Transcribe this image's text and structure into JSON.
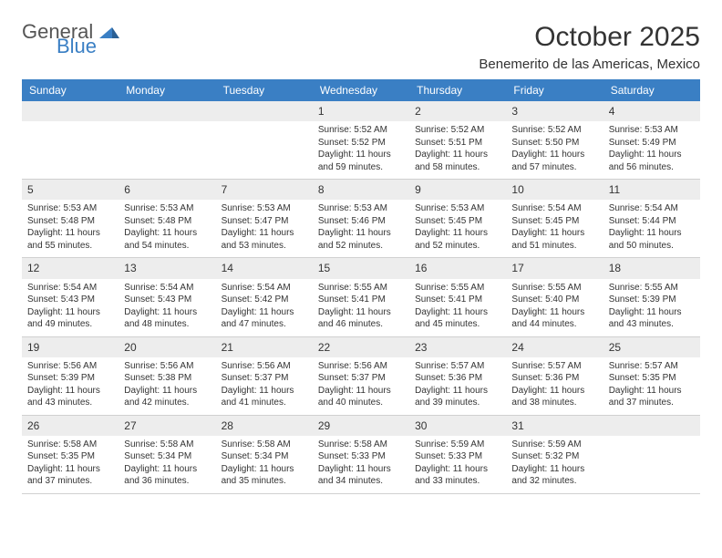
{
  "logo": {
    "textTop": "General",
    "textBottom": "Blue"
  },
  "title": "October 2025",
  "location": "Benemerito de las Americas, Mexico",
  "colors": {
    "headerBg": "#3a7fc4",
    "headerText": "#ffffff",
    "dayNumBg": "#ededed",
    "bodyText": "#333333",
    "logoGray": "#555555",
    "logoBlue": "#3a7fc4",
    "border": "#d0d0d0"
  },
  "layout": {
    "widthPx": 792,
    "heightPx": 612,
    "columns": 7,
    "rows": 5
  },
  "dayHeaders": [
    "Sunday",
    "Monday",
    "Tuesday",
    "Wednesday",
    "Thursday",
    "Friday",
    "Saturday"
  ],
  "weeks": [
    [
      {
        "num": "",
        "sunrise": "",
        "sunset": "",
        "daylight": ""
      },
      {
        "num": "",
        "sunrise": "",
        "sunset": "",
        "daylight": ""
      },
      {
        "num": "",
        "sunrise": "",
        "sunset": "",
        "daylight": ""
      },
      {
        "num": "1",
        "sunrise": "5:52 AM",
        "sunset": "5:52 PM",
        "daylight": "11 hours and 59 minutes."
      },
      {
        "num": "2",
        "sunrise": "5:52 AM",
        "sunset": "5:51 PM",
        "daylight": "11 hours and 58 minutes."
      },
      {
        "num": "3",
        "sunrise": "5:52 AM",
        "sunset": "5:50 PM",
        "daylight": "11 hours and 57 minutes."
      },
      {
        "num": "4",
        "sunrise": "5:53 AM",
        "sunset": "5:49 PM",
        "daylight": "11 hours and 56 minutes."
      }
    ],
    [
      {
        "num": "5",
        "sunrise": "5:53 AM",
        "sunset": "5:48 PM",
        "daylight": "11 hours and 55 minutes."
      },
      {
        "num": "6",
        "sunrise": "5:53 AM",
        "sunset": "5:48 PM",
        "daylight": "11 hours and 54 minutes."
      },
      {
        "num": "7",
        "sunrise": "5:53 AM",
        "sunset": "5:47 PM",
        "daylight": "11 hours and 53 minutes."
      },
      {
        "num": "8",
        "sunrise": "5:53 AM",
        "sunset": "5:46 PM",
        "daylight": "11 hours and 52 minutes."
      },
      {
        "num": "9",
        "sunrise": "5:53 AM",
        "sunset": "5:45 PM",
        "daylight": "11 hours and 52 minutes."
      },
      {
        "num": "10",
        "sunrise": "5:54 AM",
        "sunset": "5:45 PM",
        "daylight": "11 hours and 51 minutes."
      },
      {
        "num": "11",
        "sunrise": "5:54 AM",
        "sunset": "5:44 PM",
        "daylight": "11 hours and 50 minutes."
      }
    ],
    [
      {
        "num": "12",
        "sunrise": "5:54 AM",
        "sunset": "5:43 PM",
        "daylight": "11 hours and 49 minutes."
      },
      {
        "num": "13",
        "sunrise": "5:54 AM",
        "sunset": "5:43 PM",
        "daylight": "11 hours and 48 minutes."
      },
      {
        "num": "14",
        "sunrise": "5:54 AM",
        "sunset": "5:42 PM",
        "daylight": "11 hours and 47 minutes."
      },
      {
        "num": "15",
        "sunrise": "5:55 AM",
        "sunset": "5:41 PM",
        "daylight": "11 hours and 46 minutes."
      },
      {
        "num": "16",
        "sunrise": "5:55 AM",
        "sunset": "5:41 PM",
        "daylight": "11 hours and 45 minutes."
      },
      {
        "num": "17",
        "sunrise": "5:55 AM",
        "sunset": "5:40 PM",
        "daylight": "11 hours and 44 minutes."
      },
      {
        "num": "18",
        "sunrise": "5:55 AM",
        "sunset": "5:39 PM",
        "daylight": "11 hours and 43 minutes."
      }
    ],
    [
      {
        "num": "19",
        "sunrise": "5:56 AM",
        "sunset": "5:39 PM",
        "daylight": "11 hours and 43 minutes."
      },
      {
        "num": "20",
        "sunrise": "5:56 AM",
        "sunset": "5:38 PM",
        "daylight": "11 hours and 42 minutes."
      },
      {
        "num": "21",
        "sunrise": "5:56 AM",
        "sunset": "5:37 PM",
        "daylight": "11 hours and 41 minutes."
      },
      {
        "num": "22",
        "sunrise": "5:56 AM",
        "sunset": "5:37 PM",
        "daylight": "11 hours and 40 minutes."
      },
      {
        "num": "23",
        "sunrise": "5:57 AM",
        "sunset": "5:36 PM",
        "daylight": "11 hours and 39 minutes."
      },
      {
        "num": "24",
        "sunrise": "5:57 AM",
        "sunset": "5:36 PM",
        "daylight": "11 hours and 38 minutes."
      },
      {
        "num": "25",
        "sunrise": "5:57 AM",
        "sunset": "5:35 PM",
        "daylight": "11 hours and 37 minutes."
      }
    ],
    [
      {
        "num": "26",
        "sunrise": "5:58 AM",
        "sunset": "5:35 PM",
        "daylight": "11 hours and 37 minutes."
      },
      {
        "num": "27",
        "sunrise": "5:58 AM",
        "sunset": "5:34 PM",
        "daylight": "11 hours and 36 minutes."
      },
      {
        "num": "28",
        "sunrise": "5:58 AM",
        "sunset": "5:34 PM",
        "daylight": "11 hours and 35 minutes."
      },
      {
        "num": "29",
        "sunrise": "5:58 AM",
        "sunset": "5:33 PM",
        "daylight": "11 hours and 34 minutes."
      },
      {
        "num": "30",
        "sunrise": "5:59 AM",
        "sunset": "5:33 PM",
        "daylight": "11 hours and 33 minutes."
      },
      {
        "num": "31",
        "sunrise": "5:59 AM",
        "sunset": "5:32 PM",
        "daylight": "11 hours and 32 minutes."
      },
      {
        "num": "",
        "sunrise": "",
        "sunset": "",
        "daylight": ""
      }
    ]
  ],
  "labels": {
    "sunrise": "Sunrise:",
    "sunset": "Sunset:",
    "daylight": "Daylight:"
  }
}
